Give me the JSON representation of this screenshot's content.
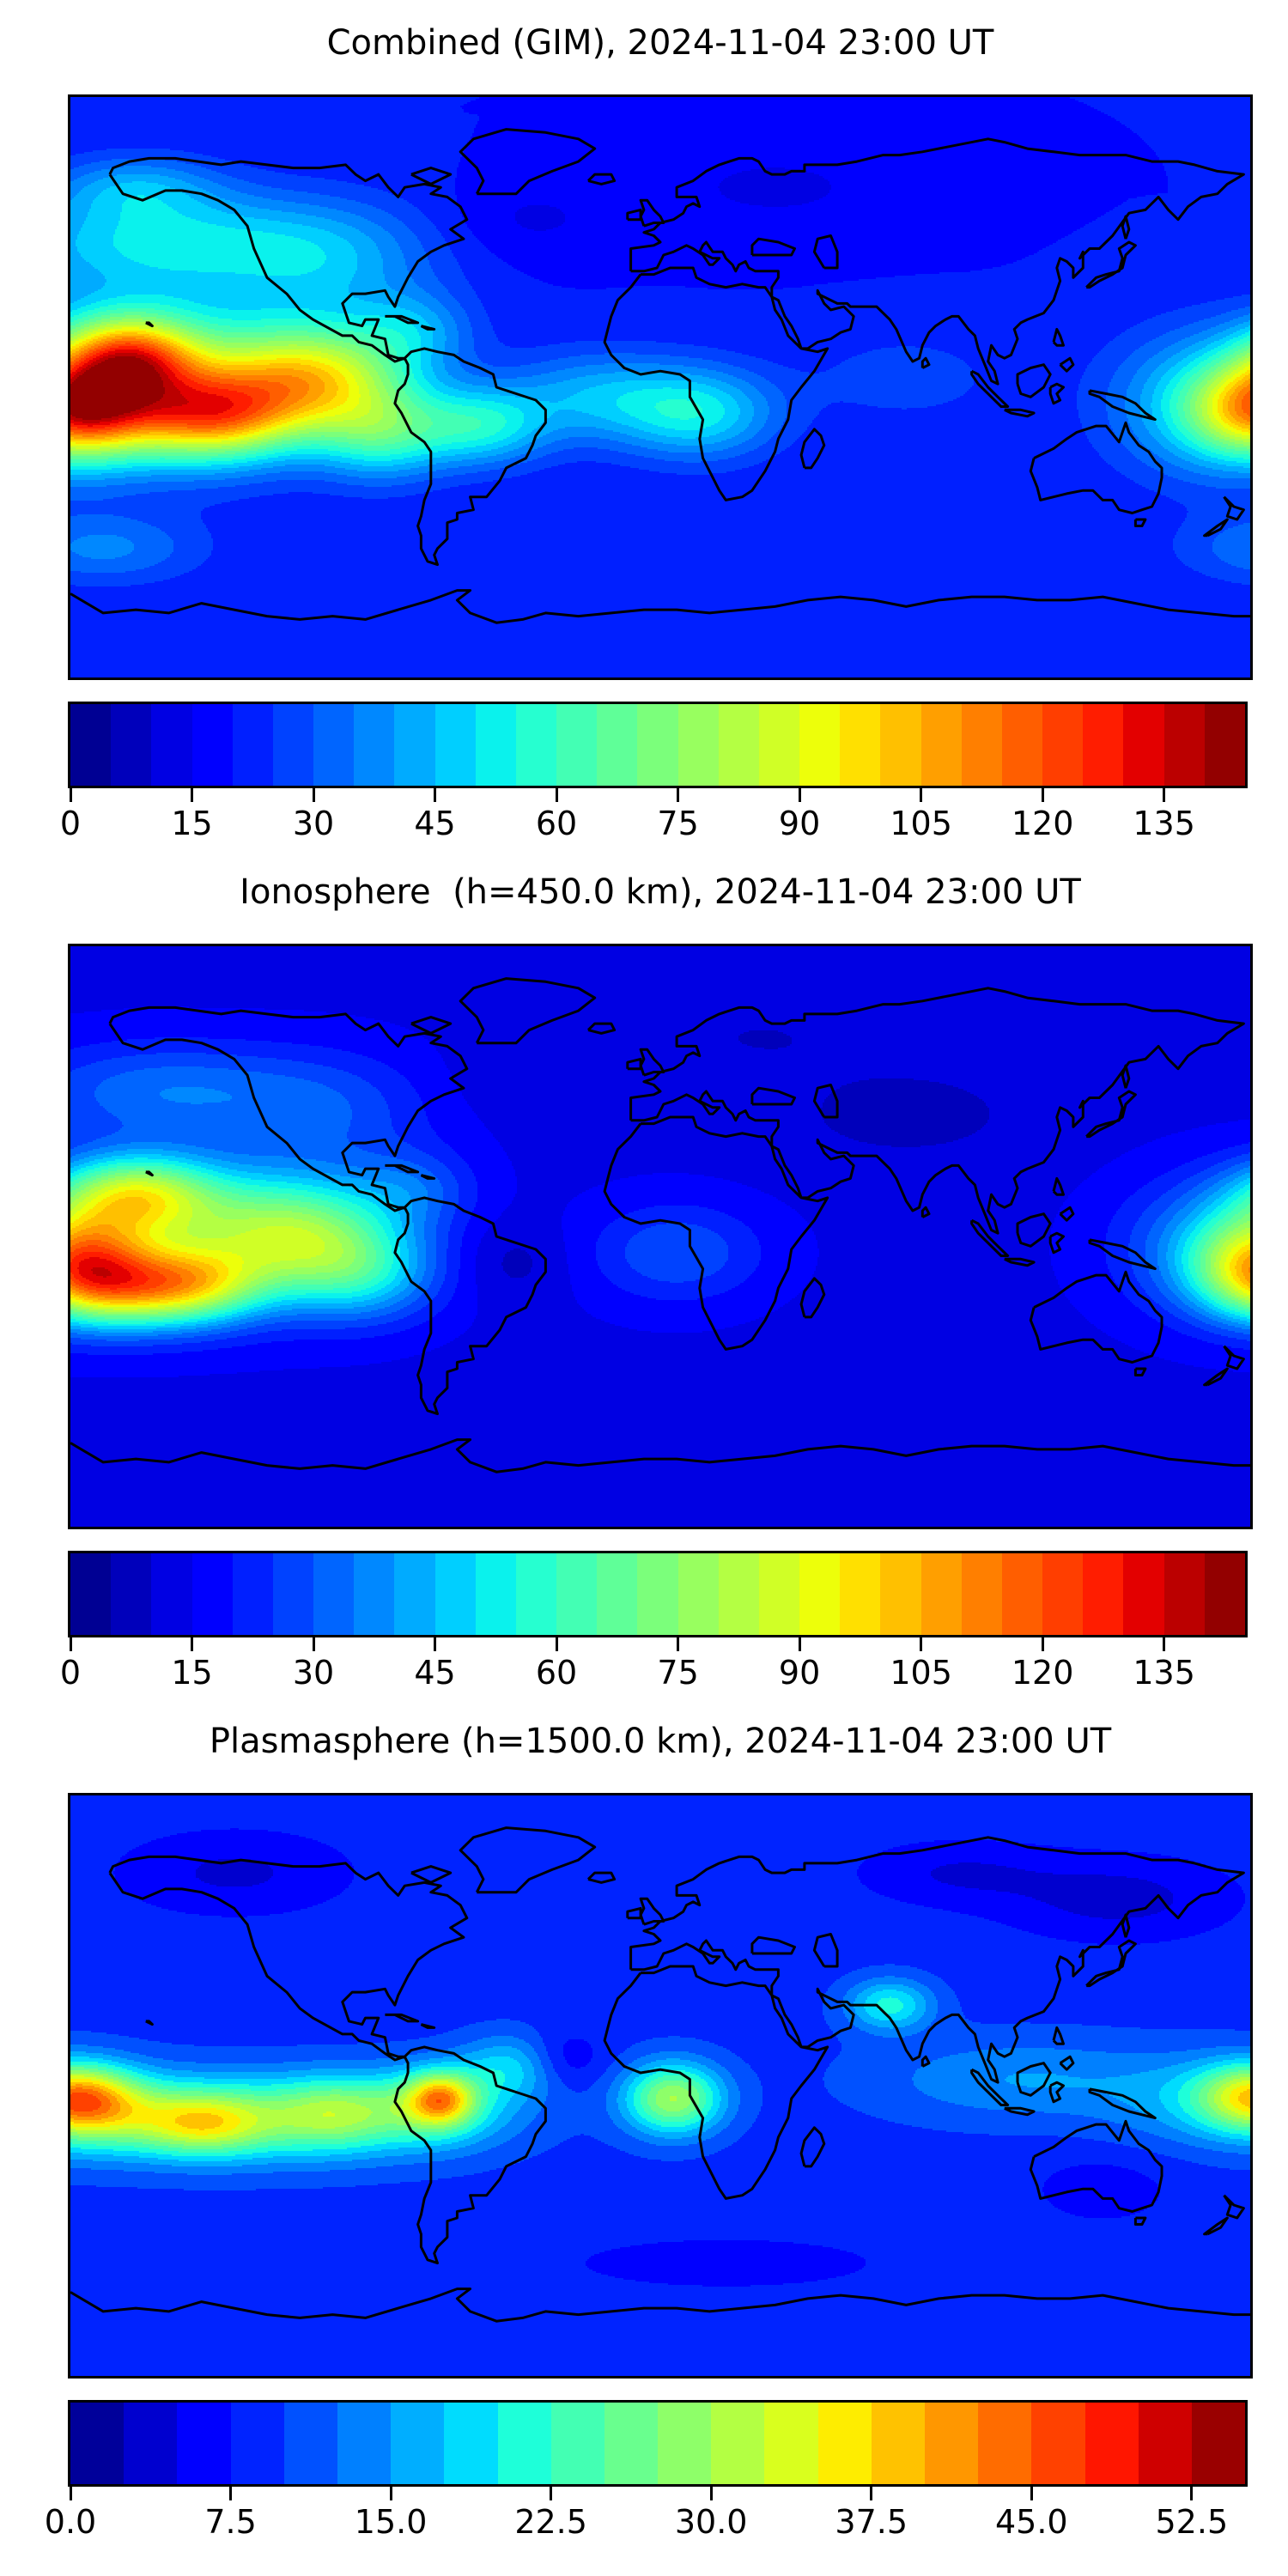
{
  "figure": {
    "background": "#ffffff",
    "colormap_accent_low": "#00008b",
    "colormap_accent_high": "#8b0000"
  },
  "chart_data": [
    {
      "type": "heatmap",
      "title": "Combined (GIM), 2024-11-04 23:00 UT",
      "projection": "equirectangular",
      "lon_range": [
        -180,
        180
      ],
      "lat_range": [
        -90,
        90
      ],
      "colormap": "jet",
      "grid": false,
      "levels": {
        "min": 0,
        "max": 145,
        "step": 5
      },
      "colorbar_ticks": {
        "values": [
          0,
          15,
          30,
          45,
          60,
          75,
          90,
          105,
          120,
          135
        ],
        "labels": [
          "0",
          "15",
          "30",
          "45",
          "60",
          "75",
          "90",
          "105",
          "120",
          "135"
        ]
      },
      "field_model": {
        "base": 20,
        "blobs": [
          [
            -162,
            9,
            20,
            13,
            62,
            1
          ],
          [
            -137,
            -9,
            26,
            13,
            62,
            1
          ],
          [
            -150,
            2,
            45,
            24,
            45,
            0
          ],
          [
            -105,
            3,
            28,
            16,
            60,
            0
          ],
          [
            -85,
            -14,
            20,
            14,
            35,
            0
          ],
          [
            -75,
            18,
            18,
            12,
            18,
            0
          ],
          [
            -55,
            -12,
            20,
            12,
            32,
            0
          ],
          [
            -20,
            -3,
            28,
            14,
            22,
            0
          ],
          [
            12,
            -8,
            24,
            14,
            30,
            0
          ],
          [
            75,
            3,
            30,
            14,
            8,
            0
          ],
          [
            183,
            -7,
            20,
            14,
            65,
            1
          ],
          [
            168,
            -5,
            30,
            22,
            30,
            1
          ],
          [
            -150,
            45,
            55,
            16,
            30,
            0
          ],
          [
            -100,
            38,
            30,
            18,
            16,
            0
          ],
          [
            -160,
            62,
            25,
            10,
            18,
            0
          ],
          [
            -170,
            -50,
            30,
            11,
            16,
            1
          ],
          [
            -40,
            52,
            25,
            12,
            -6,
            0
          ],
          [
            35,
            62,
            40,
            14,
            -6,
            0
          ]
        ]
      }
    },
    {
      "type": "heatmap",
      "title": "Ionosphere  (h=450.0 km), 2024-11-04 23:00 UT",
      "projection": "equirectangular",
      "lon_range": [
        -180,
        180
      ],
      "lat_range": [
        -90,
        90
      ],
      "colormap": "jet",
      "grid": false,
      "levels": {
        "min": 0,
        "max": 145,
        "step": 5
      },
      "colorbar_ticks": {
        "values": [
          0,
          15,
          30,
          45,
          60,
          75,
          90,
          105,
          120,
          135
        ],
        "labels": [
          "0",
          "15",
          "30",
          "45",
          "60",
          "75",
          "90",
          "105",
          "120",
          "135"
        ]
      },
      "field_model": {
        "base": 14,
        "blobs": [
          [
            -160,
            13,
            24,
            12,
            55,
            1
          ],
          [
            -160,
            -16,
            26,
            12,
            55,
            1
          ],
          [
            -140,
            -15,
            20,
            11,
            30,
            1
          ],
          [
            -145,
            0,
            45,
            22,
            32,
            0
          ],
          [
            -110,
            0,
            30,
            18,
            50,
            0
          ],
          [
            -90,
            -12,
            22,
            14,
            25,
            0
          ],
          [
            -75,
            15,
            18,
            12,
            14,
            0
          ],
          [
            183,
            -8,
            20,
            15,
            58,
            1
          ],
          [
            168,
            -3,
            28,
            20,
            22,
            1
          ],
          [
            5,
            -5,
            26,
            15,
            16,
            0
          ],
          [
            -150,
            45,
            45,
            15,
            20,
            0
          ],
          [
            -100,
            38,
            30,
            18,
            12,
            0
          ],
          [
            -45,
            -8,
            16,
            12,
            -6,
            0
          ],
          [
            75,
            38,
            40,
            16,
            -6,
            0
          ],
          [
            30,
            62,
            35,
            12,
            -4,
            0
          ],
          [
            -40,
            50,
            22,
            12,
            -4,
            0
          ]
        ]
      }
    },
    {
      "type": "heatmap",
      "title": "Plasmasphere (h=1500.0 km), 2024-11-04 23:00 UT",
      "projection": "equirectangular",
      "lon_range": [
        -180,
        180
      ],
      "lat_range": [
        -90,
        90
      ],
      "colormap": "jet",
      "grid": false,
      "levels": {
        "min": 0,
        "max": 55,
        "step": 2.5
      },
      "colorbar_ticks": {
        "values": [
          0,
          7.5,
          15,
          22.5,
          30,
          37.5,
          45,
          52.5
        ],
        "labels": [
          "0.0",
          "7.5",
          "15.0",
          "22.5",
          "30.0",
          "37.5",
          "45.0",
          "52.5"
        ]
      },
      "field_model": {
        "base": 9,
        "blobs": [
          [
            -130,
            -10,
            60,
            13,
            18,
            0
          ],
          [
            -172,
            -8,
            20,
            11,
            6,
            1
          ],
          [
            -140,
            -12,
            18,
            9,
            12,
            1
          ],
          [
            -100,
            -8,
            16,
            11,
            8,
            0
          ],
          [
            -67,
            -4,
            10,
            8,
            20,
            0
          ],
          [
            -70,
            -6,
            22,
            12,
            11,
            0
          ],
          [
            -45,
            6,
            16,
            10,
            9,
            0
          ],
          [
            4,
            -4,
            15,
            11,
            21,
            0
          ],
          [
            182,
            -3,
            17,
            10,
            20,
            1
          ],
          [
            168,
            -5,
            30,
            14,
            7,
            1
          ],
          [
            70,
            25,
            13,
            8,
            12,
            0
          ],
          [
            110,
            2,
            45,
            13,
            6,
            0
          ],
          [
            -130,
            66,
            35,
            13,
            -4.5,
            0
          ],
          [
            140,
            58,
            35,
            13,
            -5,
            0
          ],
          [
            90,
            66,
            30,
            10,
            -4,
            0
          ],
          [
            -30,
            8,
            12,
            9,
            -5,
            0
          ],
          [
            135,
            -32,
            22,
            11,
            -3,
            0
          ],
          [
            20,
            -55,
            60,
            10,
            -2.5,
            0
          ]
        ]
      }
    }
  ]
}
